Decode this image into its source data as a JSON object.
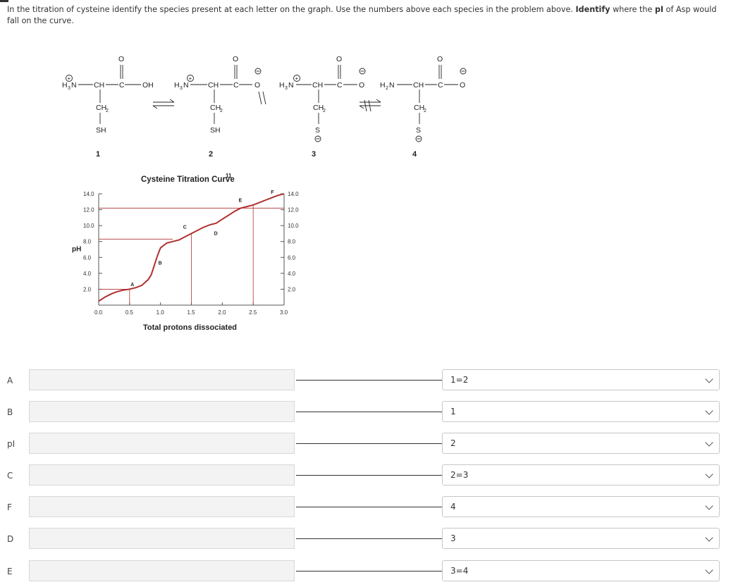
{
  "question": {
    "part1": "In the titration of cysteine identify the species present at each letter on the graph. Use the numbers above each species in the problem above. ",
    "bold1": "Identify",
    "part2": " where the ",
    "bold2": "pI",
    "part3": " of Asp would fall on the curve."
  },
  "structures": {
    "numbers": [
      "1",
      "2",
      "3",
      "4"
    ],
    "labels": {
      "h3n": "H3N",
      "h2n": "H2N",
      "ch": "CH",
      "c": "C",
      "ch2": "CH2",
      "sh": "SH",
      "s": "S",
      "oh": "OH",
      "o": "O"
    }
  },
  "chart": {
    "title": "Cysteine Titration Curve",
    "title_sup": "11",
    "xlabel": "Total protons dissociated",
    "ylabel": "pH",
    "ytick_labels": [
      "14.0",
      "12.0",
      "10.0",
      "8.0",
      "6.0",
      "4.0",
      "2.0"
    ],
    "xtick_labels": [
      "0.0",
      "0.5",
      "1.0",
      "1.5",
      "2.0",
      "2.5",
      "3.0"
    ],
    "point_labels": [
      "A",
      "B",
      "C",
      "D",
      "E",
      "F"
    ]
  },
  "chart_data": {
    "type": "line",
    "title": "Cysteine Titration Curve",
    "xlabel": "Total protons dissociated",
    "ylabel": "pH",
    "xlim": [
      0,
      3
    ],
    "ylim": [
      0,
      14
    ],
    "series": [
      {
        "x": [
          0.0,
          0.1,
          0.2,
          0.3,
          0.4,
          0.5,
          0.6,
          0.7,
          0.8,
          0.85,
          0.9,
          0.95,
          1.0,
          1.1,
          1.2,
          1.3,
          1.4,
          1.5,
          1.6,
          1.7,
          1.8,
          1.9,
          2.0,
          2.1,
          2.2,
          2.3,
          2.4,
          2.5,
          2.6,
          2.7,
          2.8,
          2.9,
          3.0
        ],
        "y": [
          0.5,
          1.0,
          1.4,
          1.7,
          1.9,
          2.0,
          2.2,
          2.5,
          3.2,
          3.8,
          5.0,
          6.2,
          7.2,
          7.8,
          8.0,
          8.2,
          8.6,
          9.0,
          9.4,
          9.8,
          10.1,
          10.3,
          10.8,
          11.3,
          11.8,
          12.2,
          12.4,
          12.6,
          12.9,
          13.2,
          13.5,
          13.8,
          14.0
        ]
      }
    ],
    "annotations": {
      "A": [
        0.55,
        2.4
      ],
      "B": [
        1.0,
        5.1
      ],
      "C": [
        1.4,
        9.6
      ],
      "D": [
        1.9,
        8.8
      ],
      "E": [
        2.3,
        13.0
      ],
      "F": [
        2.82,
        14.0
      ]
    }
  },
  "rows": [
    {
      "label": "A",
      "value": "1=2"
    },
    {
      "label": "B",
      "value": "1"
    },
    {
      "label": "pI",
      "value": "2"
    },
    {
      "label": "C",
      "value": "2=3"
    },
    {
      "label": "F",
      "value": "4"
    },
    {
      "label": "D",
      "value": "3"
    },
    {
      "label": "E",
      "value": "3=4"
    }
  ]
}
